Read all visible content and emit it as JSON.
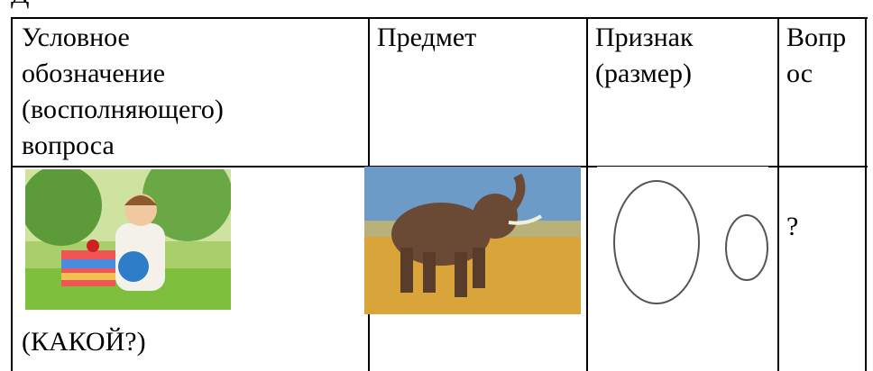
{
  "fragment": "Д",
  "table": {
    "header": [
      [
        "Условное",
        "обозначение",
        "(восполняющего)",
        "вопроса"
      ],
      [
        "Предмет"
      ],
      [
        "Признак",
        "(размер)"
      ],
      [
        "Вопр",
        "ос"
      ]
    ],
    "row": {
      "label": "(КАКОЙ?)",
      "answer": "?"
    }
  }
}
